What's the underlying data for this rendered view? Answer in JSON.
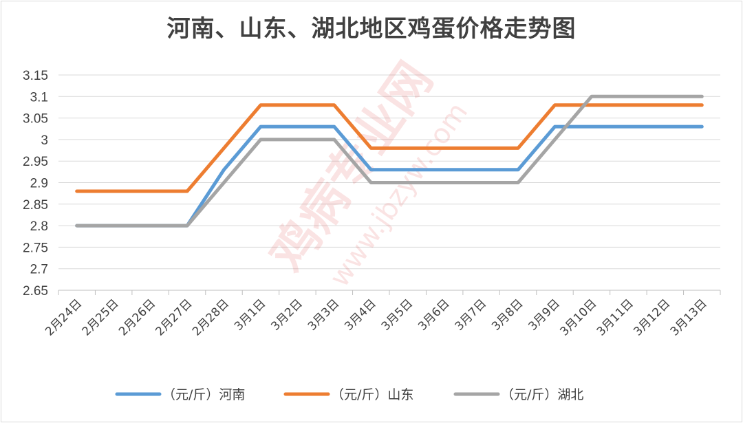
{
  "chart_data": {
    "type": "line",
    "title": "河南、山东、湖北地区鸡蛋价格走势图",
    "categories": [
      "2月24日",
      "2月25日",
      "2月26日",
      "2月27日",
      "2月28日",
      "3月1日",
      "3月2日",
      "3月3日",
      "3月4日",
      "3月5日",
      "3月6日",
      "3月7日",
      "3月8日",
      "3月9日",
      "3月10日",
      "3月11日",
      "3月12日",
      "3月13日"
    ],
    "series": [
      {
        "name": "（元/斤）河南",
        "color": "#5b9bd5",
        "values": [
          2.8,
          2.8,
          2.8,
          2.8,
          2.93,
          3.03,
          3.03,
          3.03,
          2.93,
          2.93,
          2.93,
          2.93,
          2.93,
          3.03,
          3.03,
          3.03,
          3.03,
          3.03
        ]
      },
      {
        "name": "（元/斤）山东",
        "color": "#ed7d31",
        "values": [
          2.88,
          2.88,
          2.88,
          2.88,
          2.98,
          3.08,
          3.08,
          3.08,
          2.98,
          2.98,
          2.98,
          2.98,
          2.98,
          3.08,
          3.08,
          3.08,
          3.08,
          3.08
        ]
      },
      {
        "name": "（元/斤）湖北",
        "color": "#a5a5a5",
        "values": [
          2.8,
          2.8,
          2.8,
          2.8,
          2.9,
          3.0,
          3.0,
          3.0,
          2.9,
          2.9,
          2.9,
          2.9,
          2.9,
          3.0,
          3.1,
          3.1,
          3.1,
          3.1
        ]
      }
    ],
    "yticks": [
      "2.65",
      "2.7",
      "2.75",
      "2.8",
      "2.85",
      "2.9",
      "2.95",
      "3",
      "3.05",
      "3.1",
      "3.15"
    ],
    "ylim": [
      2.65,
      3.15
    ],
    "xlabel": "",
    "ylabel": "",
    "grid": true,
    "legend_position": "bottom"
  },
  "watermark": {
    "site_name": "鸡病专业网",
    "url": "www.jbzyw.com"
  }
}
